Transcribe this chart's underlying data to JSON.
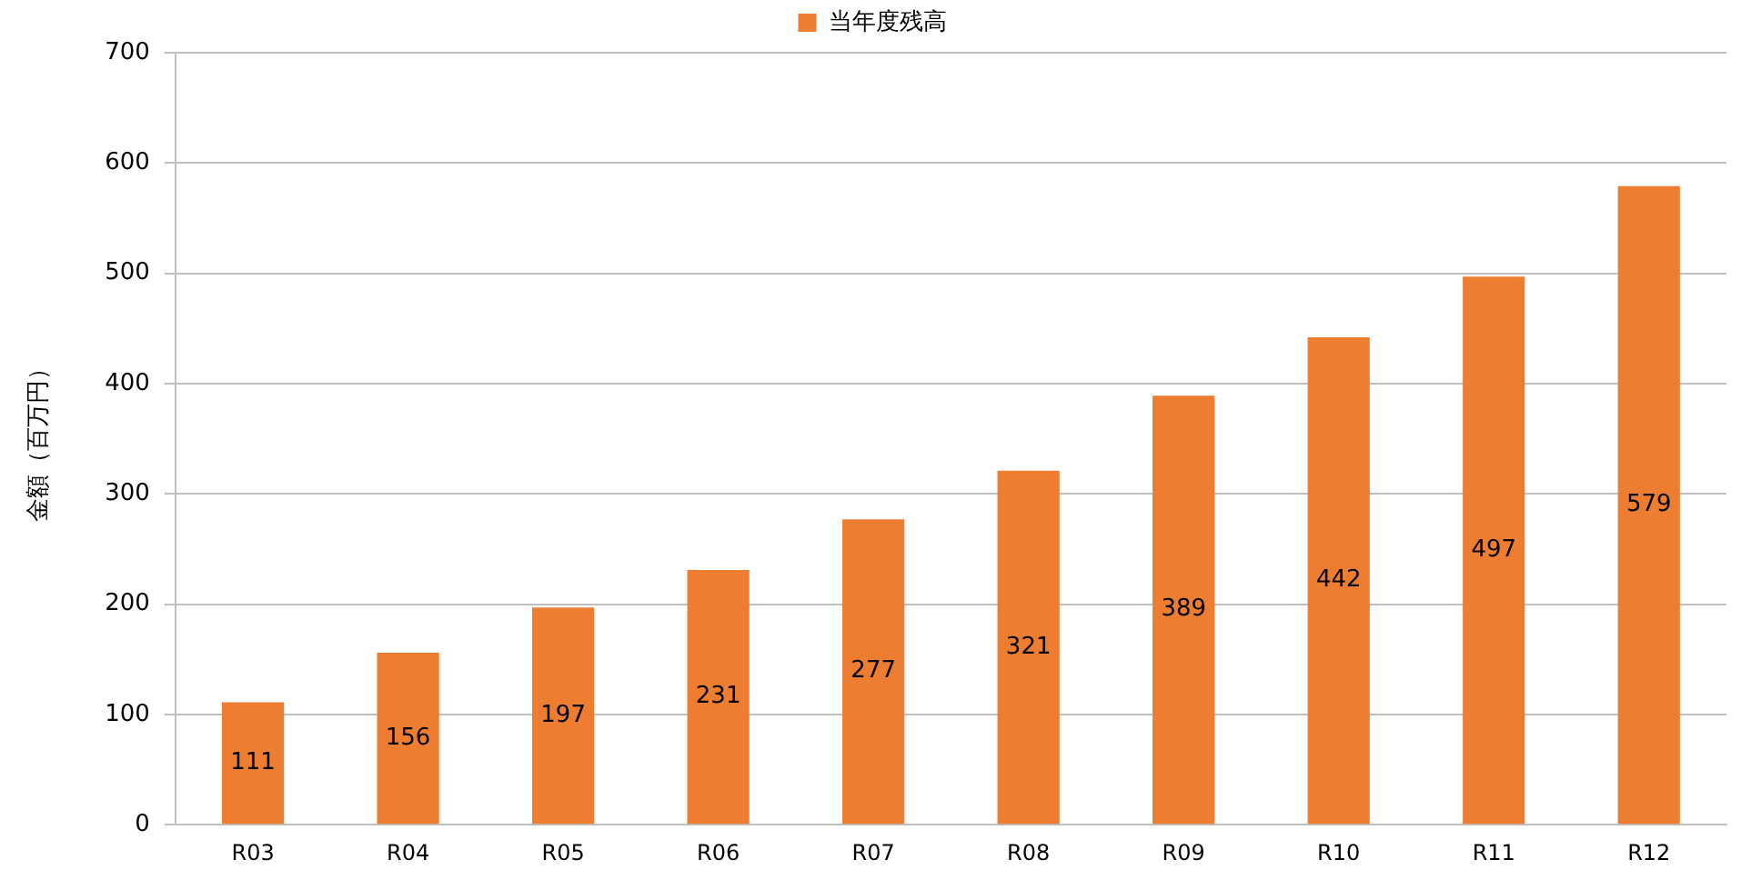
{
  "chart_data": {
    "type": "bar",
    "ylabel": "金額（百万円）",
    "categories": [
      "R03",
      "R04",
      "R05",
      "R06",
      "R07",
      "R08",
      "R09",
      "R10",
      "R11",
      "R12"
    ],
    "series": [
      {
        "name": "当年度残高",
        "color": "#ed7d31",
        "values": [
          111,
          156,
          197,
          231,
          277,
          321,
          389,
          442,
          497,
          579
        ]
      }
    ],
    "ylim": [
      0,
      700
    ],
    "yticks": [
      0,
      100,
      200,
      300,
      400,
      500,
      600,
      700
    ],
    "grid": "y",
    "legend": "top",
    "data_labels": true
  }
}
